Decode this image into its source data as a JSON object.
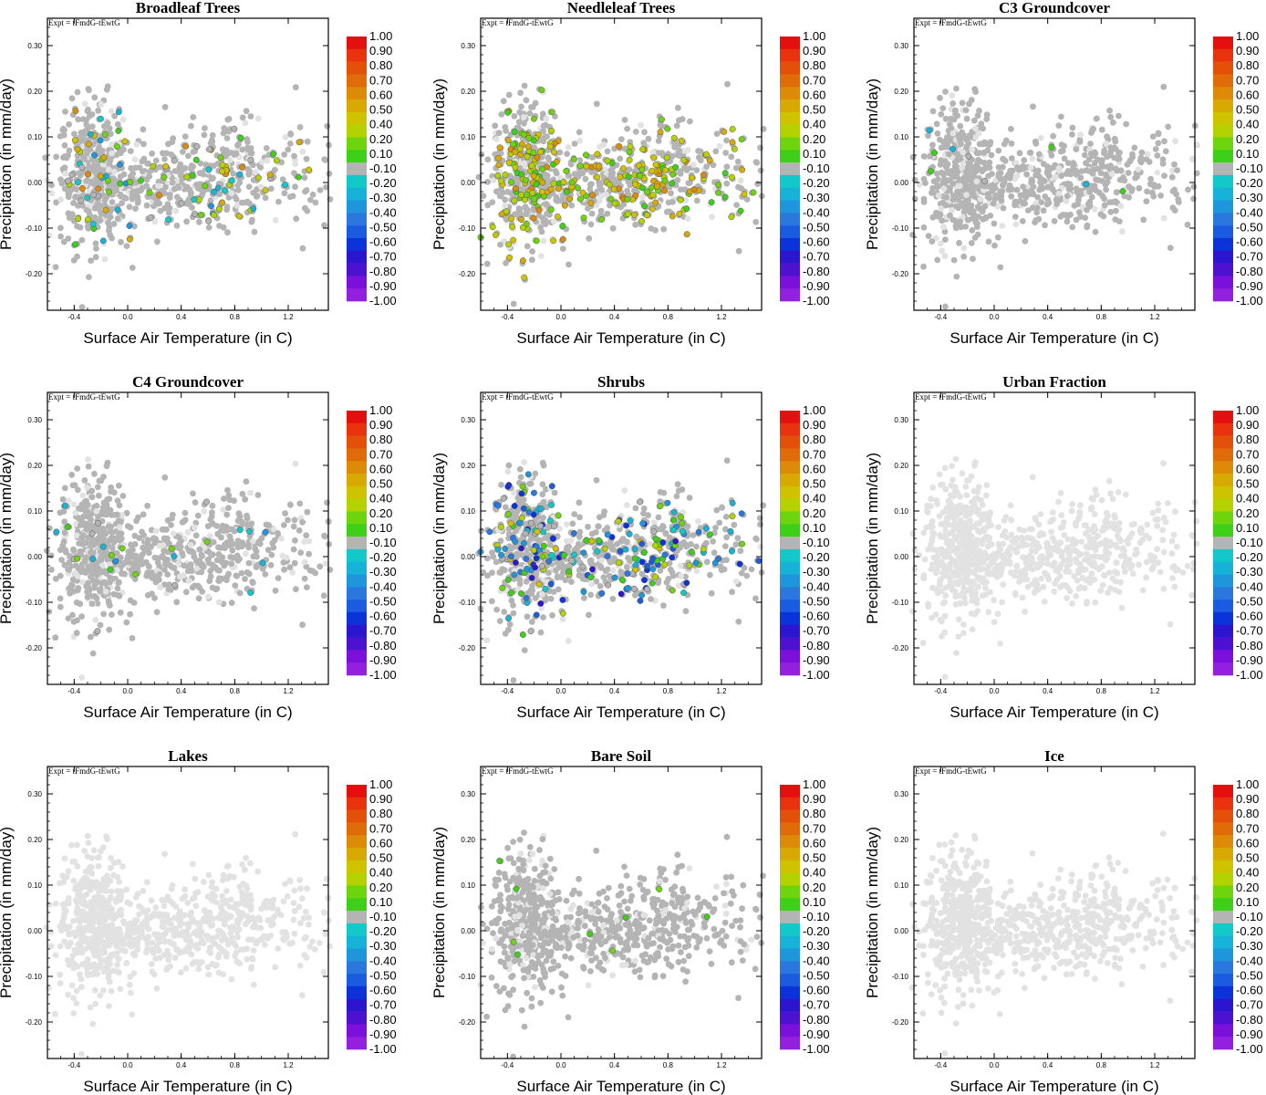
{
  "figure": {
    "expt_label": "Expt = tFmdG-tEwtG",
    "xlabel": "Surface Air Temperature (in C)",
    "ylabel": "Precipitation (in mm/day)",
    "xticks": [
      "-0.4",
      "0.0",
      "0.4",
      "0.8",
      "1.2"
    ],
    "yticks": [
      "0.30",
      "0.20",
      "0.10",
      "0.00",
      "-0.10",
      "-0.20"
    ],
    "colorbar": {
      "labels": [
        "1.00",
        "0.90",
        "0.80",
        "0.70",
        "0.60",
        "0.50",
        "0.40",
        "0.20",
        "0.10",
        "-0.10",
        "-0.20",
        "-0.30",
        "-0.40",
        "-0.50",
        "-0.60",
        "-0.70",
        "-0.80",
        "-0.90",
        "-1.00"
      ],
      "colors": [
        "#e3100f",
        "#e8330e",
        "#e3500a",
        "#df6c09",
        "#dc8a07",
        "#d8a903",
        "#cfc300",
        "#b3d200",
        "#6ed40e",
        "#3ecf18",
        "#b4b4b4",
        "#12c8c8",
        "#17b2d8",
        "#1e96db",
        "#2a78de",
        "#1a5bdf",
        "#0c33d9",
        "#2c15cf",
        "#4d12cf",
        "#7a10d9",
        "#9320de"
      ]
    }
  },
  "chart_data": [
    {
      "type": "scatter",
      "title": "Broadleaf Trees",
      "xlim": [
        -0.6,
        1.5
      ],
      "ylim": [
        -0.28,
        0.36
      ],
      "colored_fraction": 0.12,
      "colored_range": [
        -0.3,
        0.6
      ]
    },
    {
      "type": "scatter",
      "title": "Needleleaf Trees",
      "xlim": [
        -0.6,
        1.5
      ],
      "ylim": [
        -0.28,
        0.36
      ],
      "colored_fraction": 0.3,
      "colored_range": [
        0.1,
        0.6
      ]
    },
    {
      "type": "scatter",
      "title": "C3 Groundcover",
      "xlim": [
        -0.6,
        1.5
      ],
      "ylim": [
        -0.28,
        0.36
      ],
      "colored_fraction": 0.01,
      "colored_range": [
        -0.3,
        0.2
      ]
    },
    {
      "type": "scatter",
      "title": "C4 Groundcover",
      "xlim": [
        -0.6,
        1.5
      ],
      "ylim": [
        -0.28,
        0.36
      ],
      "colored_fraction": 0.03,
      "colored_range": [
        -0.4,
        0.2
      ]
    },
    {
      "type": "scatter",
      "title": "Shrubs",
      "xlim": [
        -0.6,
        1.5
      ],
      "ylim": [
        -0.28,
        0.36
      ],
      "colored_fraction": 0.25,
      "colored_range": [
        -0.7,
        0.4
      ]
    },
    {
      "type": "scatter",
      "title": "Urban Fraction",
      "xlim": [
        -0.6,
        1.5
      ],
      "ylim": [
        -0.28,
        0.36
      ],
      "colored_fraction": 0.0,
      "colored_range": [
        0,
        0
      ]
    },
    {
      "type": "scatter",
      "title": "Lakes",
      "xlim": [
        -0.6,
        1.5
      ],
      "ylim": [
        -0.28,
        0.36
      ],
      "colored_fraction": 0.0,
      "colored_range": [
        0,
        0
      ]
    },
    {
      "type": "scatter",
      "title": "Bare Soil",
      "xlim": [
        -0.6,
        1.5
      ],
      "ylim": [
        -0.28,
        0.36
      ],
      "colored_fraction": 0.01,
      "colored_range": [
        0.1,
        0.2
      ]
    },
    {
      "type": "scatter",
      "title": "Ice",
      "xlim": [
        -0.6,
        1.5
      ],
      "ylim": [
        -0.28,
        0.36
      ],
      "colored_fraction": 0.0,
      "colored_range": [
        0,
        0
      ]
    }
  ]
}
